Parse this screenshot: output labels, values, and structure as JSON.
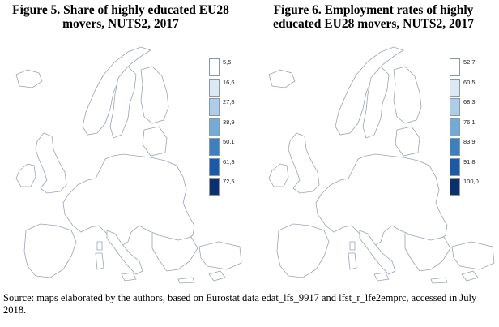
{
  "figures": [
    {
      "title": "Figure 5. Share of highly educated EU28 movers, NUTS2, 2017",
      "legend": {
        "labels": [
          "5,5",
          "16,6",
          "27,8",
          "38,9",
          "50,1",
          "61,3",
          "72,5"
        ],
        "colors": [
          "#ffffff",
          "#dce9f5",
          "#aecde8",
          "#73aad6",
          "#3d80c2",
          "#1a5aa8",
          "#0c2f6e"
        ]
      }
    },
    {
      "title": "Figure 6. Employment rates of highly educated EU28 movers, NUTS2, 2017",
      "legend": {
        "labels": [
          "52,7",
          "60,5",
          "68,3",
          "76,1",
          "83,9",
          "91,8",
          "100,0"
        ],
        "colors": [
          "#ffffff",
          "#dce9f5",
          "#aecde8",
          "#73aad6",
          "#3d80c2",
          "#1a5aa8",
          "#0c2f6e"
        ]
      }
    }
  ],
  "source": "Source: maps elaborated by the authors, based on Eurostat data edat_lfs_9917 and lfst_r_lfe2emprc, accessed in July 2018."
}
